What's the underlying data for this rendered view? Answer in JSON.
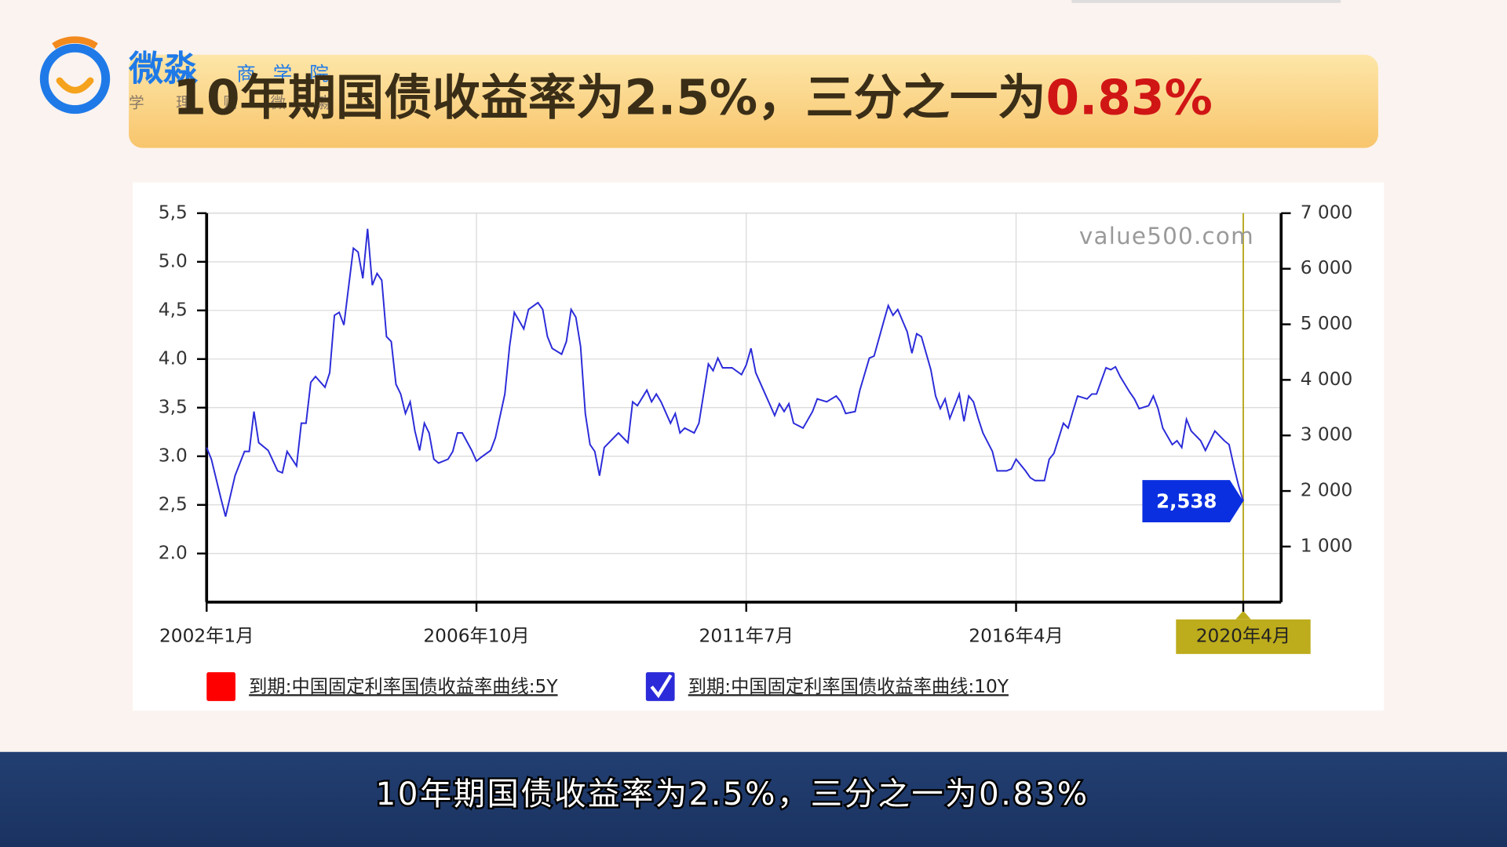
{
  "page": {
    "logo_name": "微淼",
    "logo_tags": [
      "商",
      "学",
      "院"
    ],
    "logo_slogan": "学 理 财 微 淼",
    "banner": {
      "text": "10年期国债收益率为2.5%，三分之一为",
      "highlight": "0.83%"
    },
    "caption": "10年期国债收益率为2.5%，三分之一为0.83%"
  },
  "chart_data": {
    "type": "line",
    "watermark": "value500.com",
    "x": [
      "2002-01",
      "2002-02",
      "2002-04",
      "2002-05",
      "2002-07",
      "2002-09",
      "2002-10",
      "2002-11",
      "2002-12",
      "2003-02",
      "2003-04",
      "2003-05",
      "2003-06",
      "2003-08",
      "2003-09",
      "2003-10",
      "2003-11",
      "2003-12",
      "2004-02",
      "2004-03",
      "2004-04",
      "2004-05",
      "2004-06",
      "2004-08",
      "2004-09",
      "2004-10",
      "2004-11",
      "2004-12",
      "2005-01",
      "2005-02",
      "2005-03",
      "2005-04",
      "2005-05",
      "2005-06",
      "2005-07",
      "2005-08",
      "2005-09",
      "2005-10",
      "2005-11",
      "2005-12",
      "2006-01",
      "2006-02",
      "2006-04",
      "2006-05",
      "2006-06",
      "2006-07",
      "2006-09",
      "2006-10",
      "2006-11",
      "2007-01",
      "2007-02",
      "2007-04",
      "2007-05",
      "2007-06",
      "2007-08",
      "2007-09",
      "2007-11",
      "2007-12",
      "2008-01",
      "2008-02",
      "2008-04",
      "2008-05",
      "2008-06",
      "2008-07",
      "2008-08",
      "2008-09",
      "2008-10",
      "2008-11",
      "2008-12",
      "2009-01",
      "2009-03",
      "2009-04",
      "2009-06",
      "2009-07",
      "2009-08",
      "2009-10",
      "2009-11",
      "2009-12",
      "2010-01",
      "2010-03",
      "2010-04",
      "2010-05",
      "2010-06",
      "2010-08",
      "2010-09",
      "2010-11",
      "2010-12",
      "2011-01",
      "2011-02",
      "2011-04",
      "2011-06",
      "2011-07",
      "2011-08",
      "2011-09",
      "2011-11",
      "2012-01",
      "2012-02",
      "2012-03",
      "2012-04",
      "2012-05",
      "2012-07",
      "2012-09",
      "2012-10",
      "2012-12",
      "2013-02",
      "2013-03",
      "2013-04",
      "2013-06",
      "2013-07",
      "2013-09",
      "2013-10",
      "2013-12",
      "2014-01",
      "2014-02",
      "2014-03",
      "2014-05",
      "2014-06",
      "2014-07",
      "2014-08",
      "2014-10",
      "2014-11",
      "2014-12",
      "2015-01",
      "2015-02",
      "2015-04",
      "2015-05",
      "2015-06",
      "2015-07",
      "2015-08",
      "2015-09",
      "2015-11",
      "2015-12",
      "2016-02",
      "2016-03",
      "2016-04",
      "2016-06",
      "2016-07",
      "2016-08",
      "2016-10",
      "2016-11",
      "2016-12",
      "2017-02",
      "2017-03",
      "2017-04",
      "2017-05",
      "2017-07",
      "2017-08",
      "2017-09",
      "2017-11",
      "2017-12",
      "2018-01",
      "2018-02",
      "2018-04",
      "2018-05",
      "2018-06",
      "2018-08",
      "2018-09",
      "2018-10",
      "2018-11",
      "2019-01",
      "2019-02",
      "2019-03",
      "2019-04",
      "2019-05",
      "2019-07",
      "2019-08",
      "2019-09",
      "2019-10",
      "2019-12",
      "2020-01",
      "2020-02",
      "2020-03",
      "2020-04"
    ],
    "series": [
      {
        "name": "到期:中国固定利率国债收益率曲线:10Y",
        "color": "#2b2bd9",
        "checked": true,
        "end_label": "2,538",
        "values": [
          3.09,
          2.97,
          2.57,
          2.38,
          2.8,
          3.05,
          3.05,
          3.46,
          3.14,
          3.06,
          2.85,
          2.83,
          3.05,
          2.9,
          3.34,
          3.34,
          3.76,
          3.82,
          3.71,
          3.86,
          4.45,
          4.48,
          4.35,
          5.14,
          5.1,
          4.83,
          5.34,
          4.76,
          4.88,
          4.81,
          4.23,
          4.18,
          3.74,
          3.64,
          3.44,
          3.56,
          3.26,
          3.06,
          3.34,
          3.24,
          2.97,
          2.93,
          2.97,
          3.05,
          3.24,
          3.24,
          3.06,
          2.95,
          2.99,
          3.06,
          3.19,
          3.64,
          4.13,
          4.48,
          4.31,
          4.51,
          4.58,
          4.51,
          4.23,
          4.11,
          4.05,
          4.18,
          4.51,
          4.43,
          4.13,
          3.44,
          3.12,
          3.05,
          2.8,
          3.09,
          3.19,
          3.24,
          3.14,
          3.56,
          3.52,
          3.68,
          3.56,
          3.64,
          3.56,
          3.34,
          3.44,
          3.24,
          3.29,
          3.24,
          3.34,
          3.95,
          3.88,
          4.01,
          3.91,
          3.91,
          3.84,
          3.94,
          4.11,
          3.86,
          3.64,
          3.42,
          3.54,
          3.46,
          3.54,
          3.34,
          3.29,
          3.46,
          3.59,
          3.56,
          3.62,
          3.56,
          3.44,
          3.46,
          3.68,
          4.01,
          4.03,
          4.38,
          4.55,
          4.45,
          4.51,
          4.28,
          4.06,
          4.26,
          4.23,
          3.89,
          3.62,
          3.49,
          3.59,
          3.39,
          3.64,
          3.36,
          3.62,
          3.56,
          3.39,
          3.24,
          3.05,
          2.85,
          2.85,
          2.87,
          2.97,
          2.85,
          2.78,
          2.75,
          2.75,
          2.97,
          3.03,
          3.34,
          3.29,
          3.46,
          3.62,
          3.59,
          3.64,
          3.64,
          3.91,
          3.89,
          3.92,
          3.82,
          3.66,
          3.59,
          3.49,
          3.52,
          3.62,
          3.49,
          3.29,
          3.12,
          3.16,
          3.09,
          3.38,
          3.26,
          3.16,
          3.06,
          3.16,
          3.26,
          3.16,
          3.12,
          2.9,
          2.7,
          2.538
        ]
      }
    ],
    "legend_only": [
      {
        "name": "到期:中国固定利率国债收益率曲线:5Y",
        "color": "#ff0000",
        "checked": false
      }
    ],
    "badge_color": "#0a2fe0",
    "xlim": [
      "2002-01",
      "2020-12"
    ],
    "xticks": [
      {
        "value": "2002-01",
        "label": "2002年1月"
      },
      {
        "value": "2006-10",
        "label": "2006年10月"
      },
      {
        "value": "2011-07",
        "label": "2011年7月"
      },
      {
        "value": "2016-04",
        "label": "2016年4月"
      },
      {
        "value": "2020-04",
        "label": "2020年4月",
        "highlighted": true
      }
    ],
    "ylim": [
      1.5,
      5.5
    ],
    "yticks": [
      {
        "value": 2,
        "label": "2.0"
      },
      {
        "value": 2.5,
        "label": "2,5"
      },
      {
        "value": 3,
        "label": "3.0"
      },
      {
        "value": 3.5,
        "label": "3,5"
      },
      {
        "value": 4,
        "label": "4.0"
      },
      {
        "value": 4.5,
        "label": "4,5"
      },
      {
        "value": 5,
        "label": "5.0"
      },
      {
        "value": 5.5,
        "label": "5,5"
      }
    ],
    "y2lim": [
      0,
      7000
    ],
    "y2ticks": [
      {
        "value": 1000,
        "label": "1 000"
      },
      {
        "value": 2000,
        "label": "2 000"
      },
      {
        "value": 3000,
        "label": "3 000"
      },
      {
        "value": 4000,
        "label": "4 000"
      },
      {
        "value": 5000,
        "label": "5 000"
      },
      {
        "value": 6000,
        "label": "6 000"
      },
      {
        "value": 7000,
        "label": "7 000"
      }
    ],
    "grid": true
  }
}
